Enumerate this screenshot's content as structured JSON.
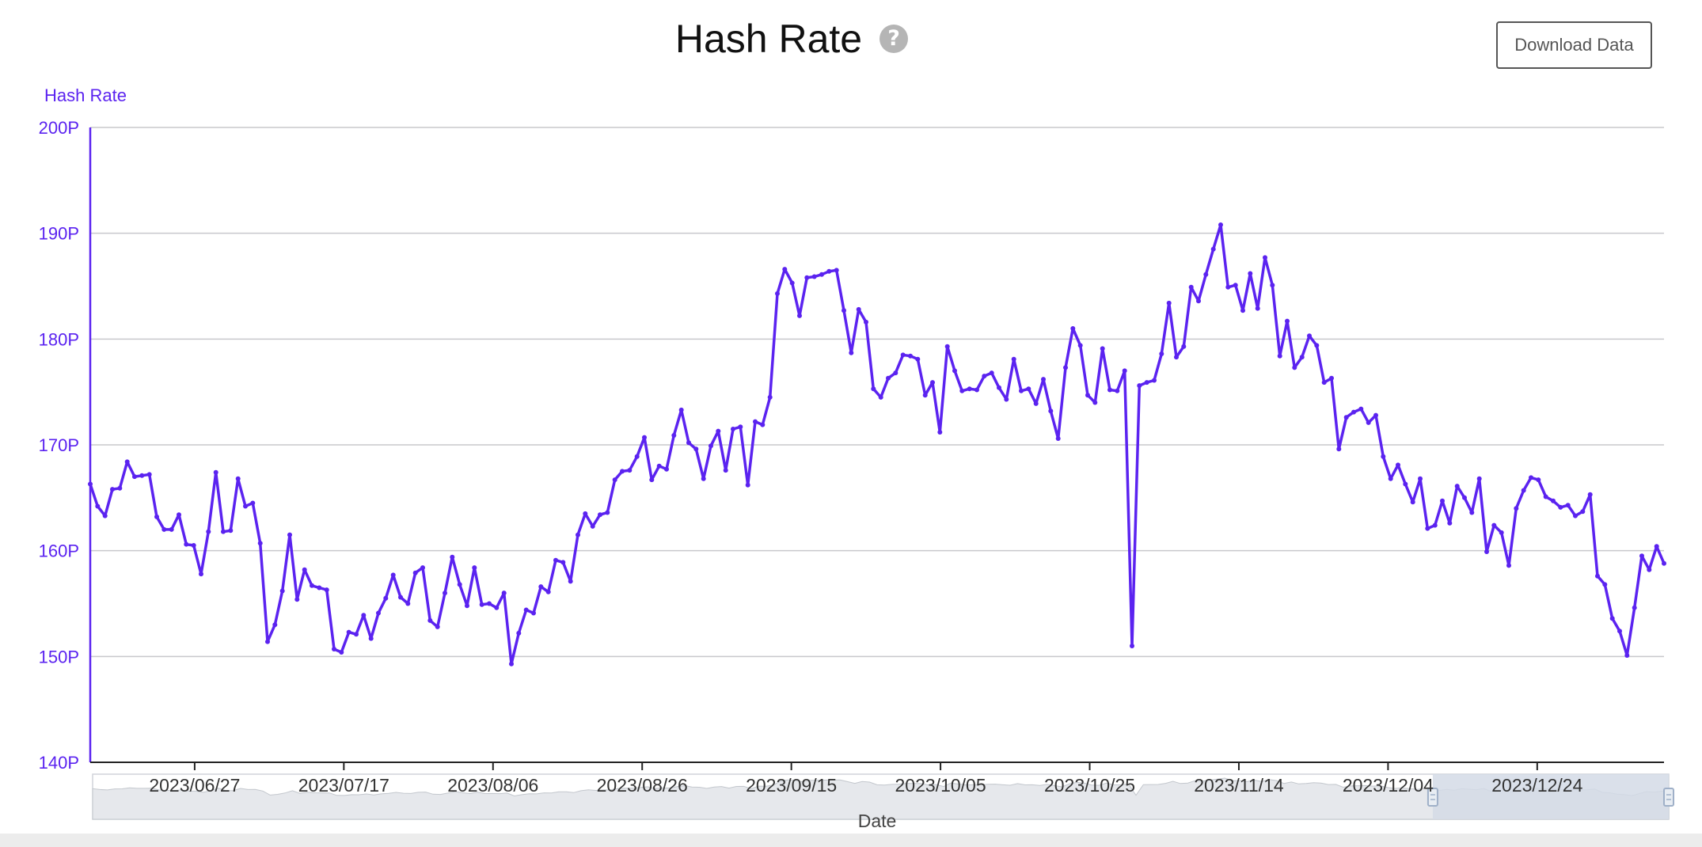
{
  "header": {
    "title": "Hash Rate",
    "help_icon": "question-circle-icon",
    "download_label": "Download Data"
  },
  "colors": {
    "line": "#5b23f0",
    "grid": "#c8c8cc",
    "slider_fill": "#d3dbe6",
    "slider_handle": "#9fb0c8"
  },
  "chart_data": {
    "type": "line",
    "title": "Hash Rate",
    "ylabel": "Hash Rate",
    "xlabel": "Date",
    "ylim": [
      140,
      200
    ],
    "yticks": [
      "140P",
      "150P",
      "160P",
      "170P",
      "180P",
      "190P",
      "200P"
    ],
    "x_start": "2023-06-13",
    "x_end": "2024-01-10",
    "xticks": [
      "2023/06/27",
      "2023/07/17",
      "2023/08/06",
      "2023/08/26",
      "2023/09/15",
      "2023/10/05",
      "2023/10/25",
      "2023/11/14",
      "2023/12/04",
      "2023/12/24"
    ],
    "grid": true,
    "legend": "none",
    "series": [
      {
        "values": [
          166.3,
          164.2,
          163.3,
          165.8,
          165.9,
          168.4,
          167.0,
          167.1,
          167.2,
          163.2,
          162.0,
          162.0,
          163.4,
          160.6,
          160.5,
          157.8,
          161.8,
          167.4,
          161.8,
          161.9,
          166.8,
          164.2,
          164.5,
          160.7,
          151.4,
          153.0,
          156.2,
          161.5,
          155.4,
          158.2,
          156.7,
          156.5,
          156.3,
          150.7,
          150.4,
          152.3,
          152.1,
          153.9,
          151.7,
          154.1,
          155.5,
          157.7,
          155.6,
          155.0,
          157.9,
          158.4,
          153.4,
          152.8,
          156.0,
          159.4,
          156.8,
          154.8,
          158.4,
          154.9,
          155.0,
          154.6,
          156.0,
          149.3,
          152.2,
          154.4,
          154.1,
          156.6,
          156.1,
          159.1,
          158.9,
          157.1,
          161.5,
          163.5,
          162.3,
          163.4,
          163.6,
          166.7,
          167.5,
          167.6,
          168.9,
          170.7,
          166.7,
          168.0,
          167.7,
          170.9,
          173.3,
          170.2,
          169.6,
          166.8,
          169.9,
          171.3,
          167.6,
          171.5,
          171.7,
          166.2,
          172.2,
          171.9,
          174.5,
          184.3,
          186.6,
          185.3,
          182.2,
          185.8,
          185.9,
          186.1,
          186.4,
          186.5,
          182.7,
          178.7,
          182.8,
          181.6,
          175.3,
          174.5,
          176.3,
          176.8,
          178.5,
          178.4,
          178.1,
          174.7,
          175.9,
          171.2,
          179.3,
          177.0,
          175.1,
          175.3,
          175.2,
          176.5,
          176.8,
          175.4,
          174.3,
          178.1,
          175.1,
          175.3,
          173.9,
          176.2,
          173.2,
          170.6,
          177.3,
          181.0,
          179.4,
          174.7,
          174.0,
          179.1,
          175.2,
          175.1,
          177.0,
          151.0,
          175.6,
          175.9,
          176.1,
          178.6,
          183.4,
          178.3,
          179.3,
          184.9,
          183.6,
          186.1,
          188.5,
          190.8,
          184.9,
          185.1,
          182.7,
          186.2,
          182.9,
          187.7,
          185.1,
          178.4,
          181.7,
          177.3,
          178.3,
          180.3,
          179.4,
          175.9,
          176.3,
          169.6,
          172.6,
          173.1,
          173.4,
          172.1,
          172.8,
          168.9,
          166.8,
          168.1,
          166.3,
          164.6,
          166.8,
          162.1,
          162.4,
          164.7,
          162.6,
          166.1,
          165.0,
          163.6,
          166.8,
          159.9,
          162.4,
          161.7,
          158.6,
          164.0,
          165.7,
          166.9,
          166.7,
          165.1,
          164.7,
          164.1,
          164.3,
          163.3,
          163.7,
          165.3,
          157.6,
          156.8,
          153.6,
          152.4,
          150.1,
          154.6,
          159.5,
          158.2,
          160.4,
          158.8
        ]
      }
    ],
    "overview": {
      "range_start": "2023-12-10",
      "range_end": "2024-01-10"
    }
  }
}
